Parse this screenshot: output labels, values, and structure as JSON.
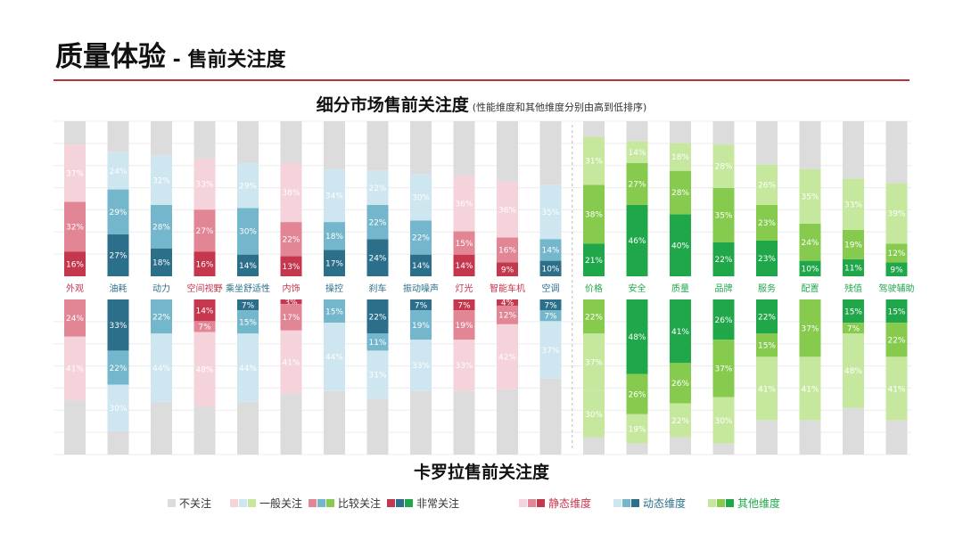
{
  "header": {
    "title_main": "质量体验",
    "title_sep": " - ",
    "title_sub": "售前关注度"
  },
  "chart_title": {
    "main": "细分市场售前关注度",
    "note": "(性能维度和其他维度分别由高到低排序)"
  },
  "bottom_title": "卡罗拉售前关注度",
  "colors": {
    "static": [
      "#f5d3da",
      "#e28595",
      "#c5374d"
    ],
    "dynamic": [
      "#cde6ef",
      "#74b6cb",
      "#2c6f8a"
    ],
    "other": [
      "#c6e89e",
      "#86cb4e",
      "#20a74a"
    ],
    "none": "#dcdcdc",
    "divider": "#bdbdbd",
    "title_rule": "#b8323e"
  },
  "legend": [
    {
      "label": "不关注",
      "swatches": [
        "#dcdcdc"
      ],
      "color": "#333333"
    },
    {
      "label": "一般关注",
      "swatches": [
        "#f5d3da",
        "#cde6ef",
        "#c6e89e"
      ],
      "color": "#333333"
    },
    {
      "label": "比较关注",
      "swatches": [
        "#e28595",
        "#74b6cb",
        "#86cb4e"
      ],
      "color": "#333333"
    },
    {
      "label": "非常关注",
      "swatches": [
        "#c5374d",
        "#2c6f8a",
        "#20a74a"
      ],
      "color": "#333333"
    },
    {
      "label": "静态维度",
      "swatches": [
        "#f5d3da",
        "#e28595",
        "#c5374d"
      ],
      "color": "#c5374d"
    },
    {
      "label": "动态维度",
      "swatches": [
        "#cde6ef",
        "#74b6cb",
        "#2c6f8a"
      ],
      "color": "#2c6f8a"
    },
    {
      "label": "其他维度",
      "swatches": [
        "#c6e89e",
        "#86cb4e",
        "#20a74a"
      ],
      "color": "#20a74a"
    }
  ],
  "chart_data": {
    "type": "bar",
    "subtype": "stacked-100-mirrored",
    "unit": "%",
    "categories": [
      "外观",
      "油耗",
      "动力",
      "空间视野",
      "乘坐舒适性",
      "内饰",
      "操控",
      "刹车",
      "振动噪声",
      "灯光",
      "智能车机",
      "空调",
      "价格",
      "安全",
      "质量",
      "品牌",
      "服务",
      "配置",
      "残值",
      "驾驶辅助"
    ],
    "groups": [
      "static",
      "dynamic",
      "dynamic",
      "static",
      "dynamic",
      "static",
      "dynamic",
      "dynamic",
      "dynamic",
      "static",
      "static",
      "dynamic",
      "other",
      "other",
      "other",
      "other",
      "other",
      "other",
      "other",
      "other"
    ],
    "levels": [
      "非常关注",
      "比较关注",
      "一般关注",
      "不关注"
    ],
    "segment_market": {
      "series": [
        {
          "name": "非常关注",
          "values": [
            16,
            27,
            18,
            16,
            14,
            13,
            17,
            24,
            14,
            14,
            9,
            10,
            21,
            46,
            40,
            22,
            23,
            10,
            11,
            9
          ]
        },
        {
          "name": "比较关注",
          "values": [
            32,
            29,
            28,
            27,
            30,
            22,
            18,
            22,
            22,
            15,
            16,
            14,
            38,
            27,
            28,
            35,
            23,
            24,
            19,
            12
          ]
        },
        {
          "name": "一般关注",
          "values": [
            37,
            24,
            32,
            33,
            29,
            38,
            34,
            22,
            30,
            36,
            36,
            35,
            31,
            14,
            18,
            28,
            26,
            35,
            33,
            39
          ]
        }
      ]
    },
    "corolla": {
      "series": [
        {
          "name": "非常关注",
          "values": [
            0,
            33,
            0,
            14,
            7,
            3,
            0,
            22,
            7,
            7,
            4,
            7,
            0,
            48,
            41,
            26,
            22,
            0,
            15,
            15
          ]
        },
        {
          "name": "比较关注",
          "values": [
            24,
            22,
            22,
            7,
            15,
            17,
            15,
            11,
            19,
            19,
            12,
            7,
            22,
            26,
            26,
            37,
            15,
            37,
            7,
            22
          ]
        },
        {
          "name": "一般关注",
          "values": [
            41,
            30,
            44,
            48,
            44,
            41,
            44,
            31,
            33,
            33,
            42,
            37,
            37,
            19,
            22,
            30,
            41,
            41,
            48,
            41
          ]
        },
        {
          "name": "corolla_layer_4",
          "values": [
            0,
            0,
            0,
            0,
            0,
            0,
            0,
            0,
            0,
            0,
            0,
            0,
            30,
            0,
            0,
            0,
            0,
            0,
            0,
            0
          ]
        }
      ]
    },
    "ylim": [
      0,
      100
    ],
    "grid": true
  }
}
